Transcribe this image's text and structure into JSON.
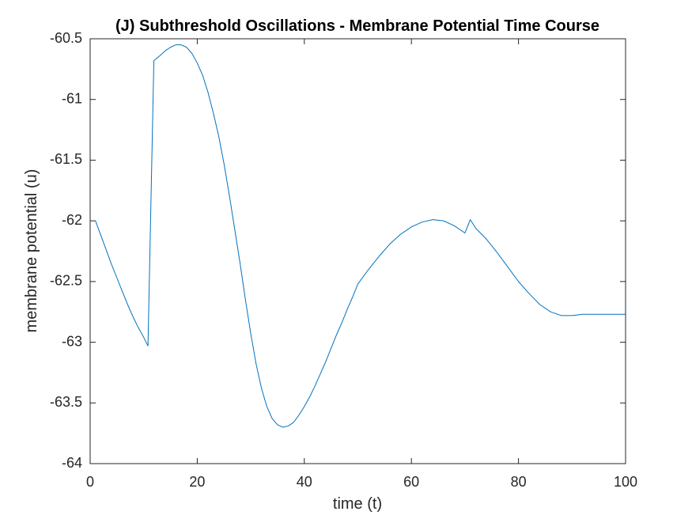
{
  "chart_data": {
    "type": "line",
    "title": "(J) Subthreshold Oscillations - Membrane Potential Time Course",
    "xlabel": "time (t)",
    "ylabel": "membrane potential (u)",
    "xlim": [
      0,
      100
    ],
    "ylim": [
      -64,
      -60.5
    ],
    "xticks": [
      0,
      20,
      40,
      60,
      80,
      100
    ],
    "xtick_labels": [
      "0",
      "20",
      "40",
      "60",
      "80",
      "100"
    ],
    "yticks": [
      -64,
      -63.5,
      -63,
      -62.5,
      -62,
      -61.5,
      -61,
      -60.5
    ],
    "ytick_labels": [
      "-64",
      "-63.5",
      "-63",
      "-62.5",
      "-62",
      "-61.5",
      "-61",
      "-60.5"
    ],
    "grid": false,
    "box": true,
    "series": [
      {
        "color": "#0072BD",
        "x": [
          1,
          2,
          3,
          4,
          5,
          6,
          7,
          8,
          9,
          10,
          10.8,
          11.9,
          13,
          14,
          15,
          16,
          17,
          18,
          19,
          20,
          21,
          22,
          23,
          24,
          25,
          26,
          27,
          28,
          29,
          30,
          31,
          32,
          33,
          34,
          35,
          36,
          37,
          38,
          39,
          40,
          41,
          42,
          43,
          44,
          45,
          46,
          47,
          48,
          49,
          50,
          52,
          54,
          56,
          58,
          60,
          62,
          64,
          66,
          68,
          70,
          71,
          72,
          74,
          76,
          78,
          80,
          82,
          84,
          86,
          88,
          90,
          92,
          94,
          96,
          98,
          100
        ],
        "y": [
          -62.0,
          -62.12,
          -62.24,
          -62.36,
          -62.47,
          -62.58,
          -62.69,
          -62.79,
          -62.88,
          -62.96,
          -63.03,
          -60.68,
          -60.64,
          -60.6,
          -60.57,
          -60.55,
          -60.55,
          -60.57,
          -60.62,
          -60.7,
          -60.8,
          -60.94,
          -61.11,
          -61.3,
          -61.53,
          -61.79,
          -62.07,
          -62.35,
          -62.65,
          -62.93,
          -63.18,
          -63.38,
          -63.53,
          -63.63,
          -63.68,
          -63.7,
          -63.69,
          -63.66,
          -63.6,
          -63.53,
          -63.45,
          -63.36,
          -63.26,
          -63.16,
          -63.05,
          -62.94,
          -62.84,
          -62.73,
          -62.63,
          -62.52,
          -62.4,
          -62.29,
          -62.19,
          -62.11,
          -62.05,
          -62.01,
          -61.99,
          -62.0,
          -62.04,
          -62.1,
          -61.99,
          -62.06,
          -62.15,
          -62.26,
          -62.38,
          -62.5,
          -62.6,
          -62.69,
          -62.75,
          -62.78,
          -62.78,
          -62.77,
          -62.77,
          -62.77,
          -62.77,
          -62.77
        ]
      }
    ]
  }
}
